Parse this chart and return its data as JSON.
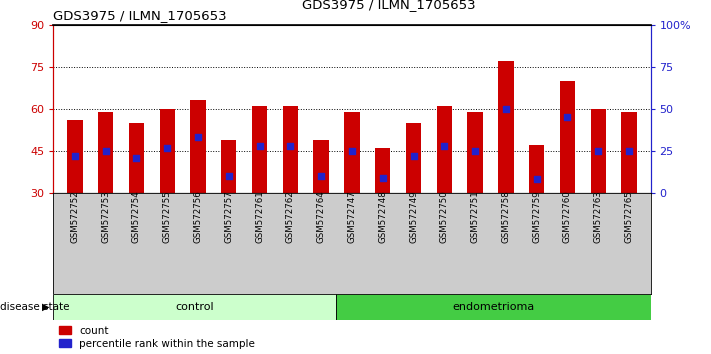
{
  "title": "GDS3975 / ILMN_1705653",
  "samples": [
    "GSM572752",
    "GSM572753",
    "GSM572754",
    "GSM572755",
    "GSM572756",
    "GSM572757",
    "GSM572761",
    "GSM572762",
    "GSM572764",
    "GSM572747",
    "GSM572748",
    "GSM572749",
    "GSM572750",
    "GSM572751",
    "GSM572758",
    "GSM572759",
    "GSM572760",
    "GSM572763",
    "GSM572765"
  ],
  "counts": [
    56,
    59,
    55,
    60,
    63,
    49,
    61,
    61,
    49,
    59,
    46,
    55,
    61,
    59,
    77,
    47,
    70,
    60,
    59
  ],
  "percentiles_pct": [
    22,
    25,
    21,
    27,
    33,
    10,
    28,
    28,
    10,
    25,
    9,
    22,
    28,
    25,
    50,
    8,
    45,
    25,
    25
  ],
  "groups": [
    "control",
    "control",
    "control",
    "control",
    "control",
    "control",
    "control",
    "control",
    "control",
    "endometrioma",
    "endometrioma",
    "endometrioma",
    "endometrioma",
    "endometrioma",
    "endometrioma",
    "endometrioma",
    "endometrioma",
    "endometrioma",
    "endometrioma"
  ],
  "ymin": 30,
  "ymax": 90,
  "yticks_left": [
    30,
    45,
    60,
    75,
    90
  ],
  "yticks_right_pct": [
    0,
    25,
    50,
    75,
    100
  ],
  "right_yticklabels": [
    "0",
    "25",
    "50",
    "75",
    "100%"
  ],
  "bar_color": "#cc0000",
  "dot_color": "#2222cc",
  "control_color": "#ccffcc",
  "endometrioma_color": "#44cc44",
  "xticklabel_bg": "#cccccc",
  "grid_yticks": [
    45,
    60,
    75
  ],
  "n_control": 9
}
